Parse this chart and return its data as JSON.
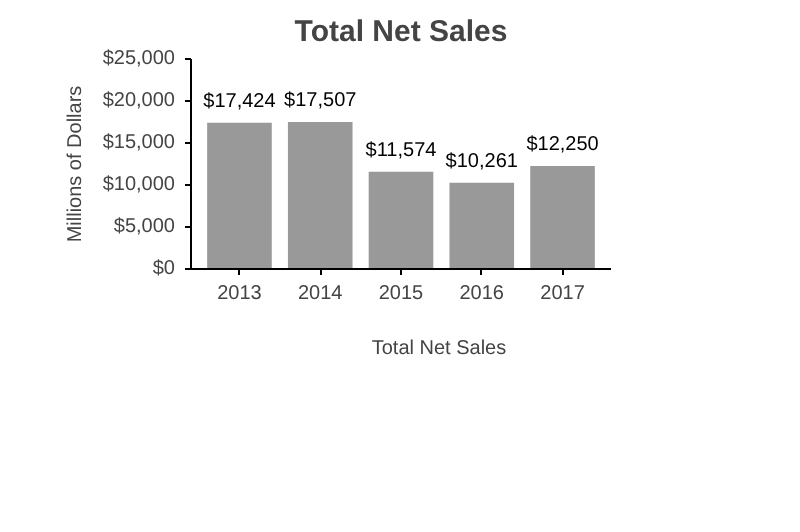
{
  "chart_data": {
    "type": "bar",
    "title": "Total Net Sales",
    "ylabel": "Millions of Dollars",
    "categories": [
      "2013",
      "2014",
      "2015",
      "2016",
      "2017"
    ],
    "series": [
      {
        "name": "Total Net Sales",
        "color": "#999999",
        "values": [
          17424,
          17507,
          11574,
          10261,
          12250
        ],
        "value_labels": [
          "$17,424",
          "$17,507",
          "$11,574",
          "$10,261",
          "$12,250"
        ]
      }
    ],
    "ylim": [
      0,
      25000
    ],
    "yticks": [
      {
        "value": 0,
        "label": "$0"
      },
      {
        "value": 5000,
        "label": "$5,000"
      },
      {
        "value": 10000,
        "label": "$10,000"
      },
      {
        "value": 15000,
        "label": "$15,000"
      },
      {
        "value": 20000,
        "label": "$20,000"
      },
      {
        "value": 25000,
        "label": "$25,000"
      }
    ],
    "grid": false,
    "legend": "bottom"
  }
}
